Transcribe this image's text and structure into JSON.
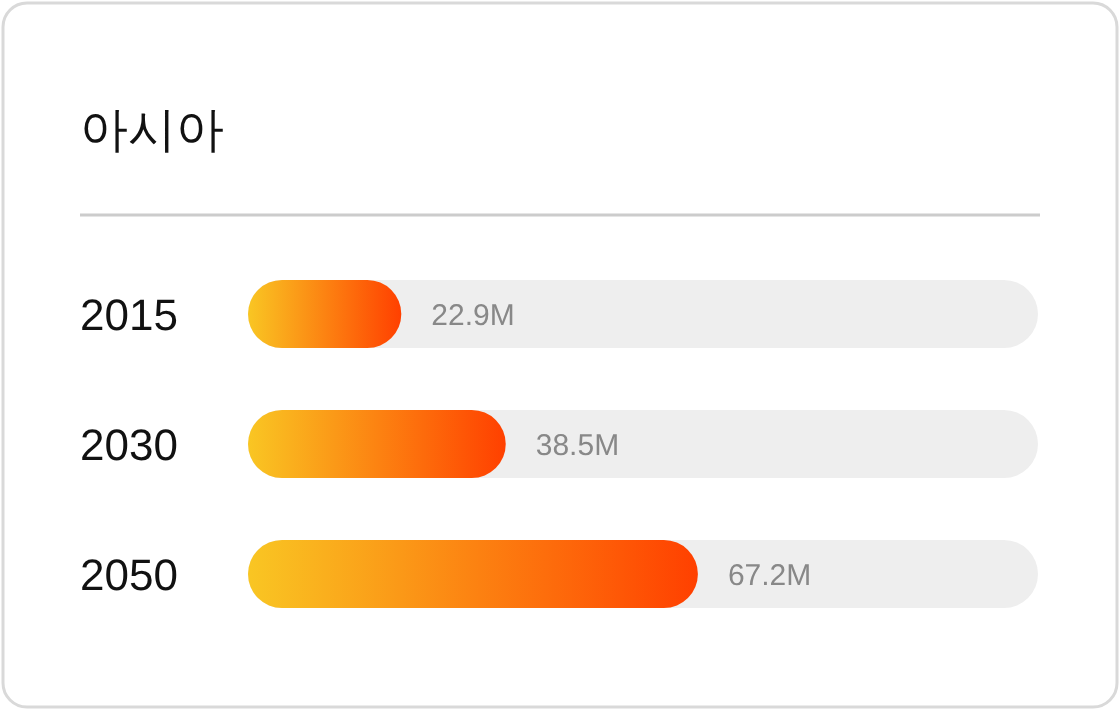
{
  "chart_data": {
    "type": "bar",
    "orientation": "horizontal",
    "title": "아시아",
    "categories": [
      "2015",
      "2030",
      "2050"
    ],
    "values": [
      22.9,
      38.5,
      67.2
    ],
    "value_labels": [
      "22.9M",
      "38.5M",
      "67.2M"
    ],
    "xlim": [
      0,
      118
    ],
    "color": "#ff4000"
  }
}
